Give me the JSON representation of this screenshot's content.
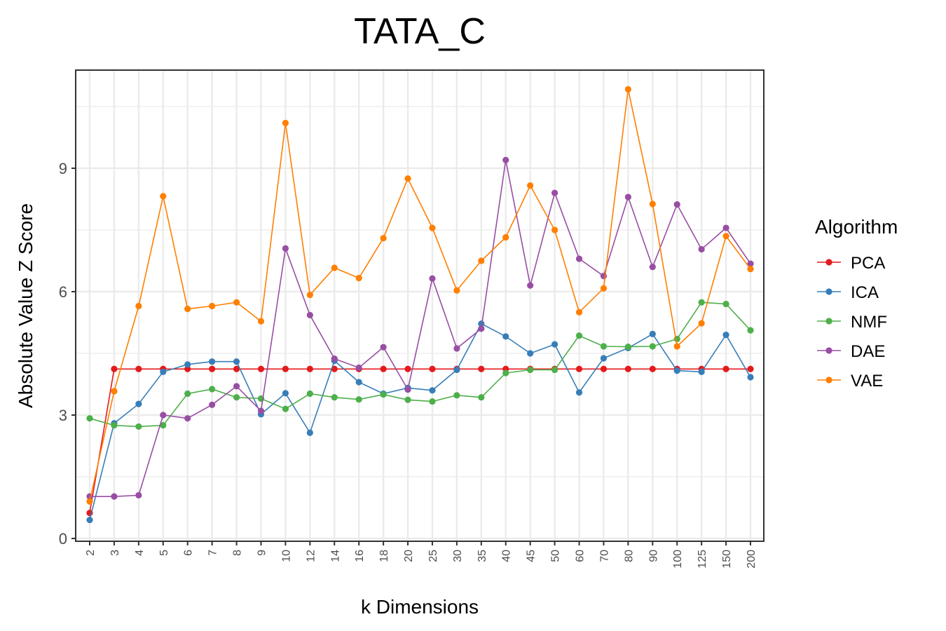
{
  "chart_data": {
    "type": "line",
    "title": "TATA_C",
    "xlabel": "k Dimensions",
    "ylabel": "Absolute Value Z Score",
    "categories": [
      "2",
      "3",
      "4",
      "5",
      "6",
      "7",
      "8",
      "9",
      "10",
      "12",
      "14",
      "16",
      "18",
      "20",
      "25",
      "30",
      "35",
      "40",
      "45",
      "50",
      "60",
      "70",
      "80",
      "90",
      "100",
      "125",
      "150",
      "200"
    ],
    "ylim": [
      0,
      11.3
    ],
    "yticks": [
      0,
      3,
      6,
      9
    ],
    "grid": true,
    "legend": {
      "title": "Algorithm",
      "position": "right"
    },
    "series": [
      {
        "name": "PCA",
        "color": "#E41A1C",
        "values": [
          0.62,
          4.12,
          4.12,
          4.12,
          4.12,
          4.12,
          4.12,
          4.12,
          4.12,
          4.12,
          4.12,
          4.12,
          4.12,
          4.12,
          4.12,
          4.12,
          4.12,
          4.12,
          4.12,
          4.12,
          4.12,
          4.12,
          4.12,
          4.12,
          4.12,
          4.12,
          4.12,
          4.12
        ]
      },
      {
        "name": "ICA",
        "color": "#377EB8",
        "values": [
          0.45,
          2.8,
          3.27,
          4.05,
          4.23,
          4.3,
          4.3,
          3.02,
          3.53,
          2.57,
          4.32,
          3.8,
          3.52,
          3.66,
          3.6,
          4.1,
          5.22,
          4.91,
          4.5,
          4.72,
          3.55,
          4.38,
          4.63,
          4.97,
          4.08,
          4.05,
          4.95,
          3.92
        ]
      },
      {
        "name": "NMF",
        "color": "#4DAF4A",
        "values": [
          2.92,
          2.75,
          2.72,
          2.75,
          3.52,
          3.63,
          3.43,
          3.4,
          3.15,
          3.52,
          3.43,
          3.38,
          3.5,
          3.37,
          3.33,
          3.48,
          3.43,
          4.02,
          4.1,
          4.1,
          4.93,
          4.67,
          4.66,
          4.67,
          4.85,
          5.74,
          5.7,
          5.06
        ]
      },
      {
        "name": "DAE",
        "color": "#984EA3",
        "values": [
          1.02,
          1.02,
          1.05,
          3.0,
          2.92,
          3.25,
          3.7,
          3.1,
          7.05,
          5.43,
          4.37,
          4.15,
          4.65,
          3.62,
          6.32,
          4.62,
          5.1,
          9.2,
          6.15,
          8.4,
          6.8,
          6.38,
          8.3,
          6.6,
          8.12,
          7.03,
          7.55,
          6.68
        ]
      },
      {
        "name": "VAE",
        "color": "#FF7F00",
        "values": [
          0.9,
          3.58,
          5.65,
          8.32,
          5.58,
          5.65,
          5.74,
          5.28,
          10.1,
          5.92,
          6.58,
          6.33,
          7.3,
          8.75,
          7.55,
          6.03,
          6.75,
          7.32,
          8.58,
          7.5,
          5.5,
          6.08,
          10.92,
          8.13,
          4.67,
          5.23,
          7.35,
          6.55
        ]
      }
    ]
  }
}
